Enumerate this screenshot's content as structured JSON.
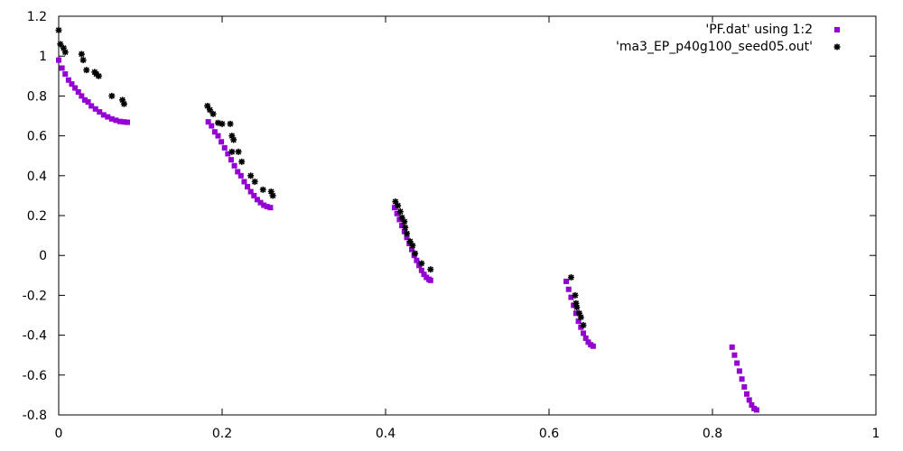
{
  "chart_data": {
    "type": "scatter",
    "xlim": [
      0,
      1
    ],
    "ylim": [
      -0.8,
      1.2
    ],
    "x_ticks": [
      0,
      0.2,
      0.4,
      0.6,
      0.8,
      1
    ],
    "x_tick_labels": [
      "0",
      "0.2",
      "0.4",
      "0.6",
      "0.8",
      "1"
    ],
    "y_ticks": [
      -0.8,
      -0.6,
      -0.4,
      -0.2,
      0,
      0.2,
      0.4,
      0.6,
      0.8,
      1,
      1.2
    ],
    "y_tick_labels": [
      "-0.8",
      "-0.6",
      "-0.4",
      "-0.2",
      "0",
      "0.2",
      "0.4",
      "0.6",
      "0.8",
      "1",
      "1.2"
    ],
    "grid": false,
    "legend_position": "top-right",
    "series": [
      {
        "name": "'PF.dat' using 1:2",
        "color": "#9400d3",
        "marker": "filled-square",
        "points": [
          [
            0.0,
            0.98
          ],
          [
            0.004,
            0.94
          ],
          [
            0.008,
            0.91
          ],
          [
            0.012,
            0.88
          ],
          [
            0.016,
            0.86
          ],
          [
            0.02,
            0.84
          ],
          [
            0.024,
            0.82
          ],
          [
            0.028,
            0.8
          ],
          [
            0.032,
            0.78
          ],
          [
            0.036,
            0.77
          ],
          [
            0.04,
            0.75
          ],
          [
            0.045,
            0.735
          ],
          [
            0.05,
            0.72
          ],
          [
            0.055,
            0.705
          ],
          [
            0.06,
            0.695
          ],
          [
            0.065,
            0.685
          ],
          [
            0.07,
            0.678
          ],
          [
            0.075,
            0.672
          ],
          [
            0.08,
            0.67
          ],
          [
            0.084,
            0.668
          ],
          [
            0.183,
            0.67
          ],
          [
            0.187,
            0.65
          ],
          [
            0.191,
            0.62
          ],
          [
            0.195,
            0.6
          ],
          [
            0.199,
            0.57
          ],
          [
            0.203,
            0.54
          ],
          [
            0.207,
            0.51
          ],
          [
            0.211,
            0.48
          ],
          [
            0.215,
            0.45
          ],
          [
            0.219,
            0.42
          ],
          [
            0.223,
            0.4
          ],
          [
            0.227,
            0.37
          ],
          [
            0.231,
            0.345
          ],
          [
            0.235,
            0.32
          ],
          [
            0.239,
            0.3
          ],
          [
            0.243,
            0.28
          ],
          [
            0.247,
            0.265
          ],
          [
            0.251,
            0.252
          ],
          [
            0.255,
            0.245
          ],
          [
            0.259,
            0.24
          ],
          [
            0.411,
            0.24
          ],
          [
            0.414,
            0.21
          ],
          [
            0.417,
            0.18
          ],
          [
            0.42,
            0.15
          ],
          [
            0.423,
            0.12
          ],
          [
            0.426,
            0.09
          ],
          [
            0.429,
            0.06
          ],
          [
            0.432,
            0.03
          ],
          [
            0.435,
            0.0
          ],
          [
            0.438,
            -0.025
          ],
          [
            0.441,
            -0.05
          ],
          [
            0.444,
            -0.075
          ],
          [
            0.447,
            -0.095
          ],
          [
            0.45,
            -0.11
          ],
          [
            0.453,
            -0.12
          ],
          [
            0.455,
            -0.125
          ],
          [
            0.621,
            -0.13
          ],
          [
            0.624,
            -0.17
          ],
          [
            0.627,
            -0.21
          ],
          [
            0.63,
            -0.25
          ],
          [
            0.633,
            -0.29
          ],
          [
            0.636,
            -0.33
          ],
          [
            0.639,
            -0.36
          ],
          [
            0.642,
            -0.39
          ],
          [
            0.645,
            -0.415
          ],
          [
            0.648,
            -0.435
          ],
          [
            0.651,
            -0.448
          ],
          [
            0.654,
            -0.455
          ],
          [
            0.824,
            -0.46
          ],
          [
            0.827,
            -0.5
          ],
          [
            0.83,
            -0.54
          ],
          [
            0.833,
            -0.58
          ],
          [
            0.836,
            -0.62
          ],
          [
            0.839,
            -0.66
          ],
          [
            0.842,
            -0.695
          ],
          [
            0.845,
            -0.725
          ],
          [
            0.848,
            -0.75
          ],
          [
            0.851,
            -0.768
          ],
          [
            0.854,
            -0.775
          ]
        ]
      },
      {
        "name": "'ma3_EP_p40g100_seed05.out'",
        "color": "#000000",
        "marker": "asterisk",
        "points": [
          [
            0.0,
            1.13
          ],
          [
            0.002,
            1.06
          ],
          [
            0.006,
            1.04
          ],
          [
            0.008,
            1.02
          ],
          [
            0.028,
            1.01
          ],
          [
            0.03,
            0.98
          ],
          [
            0.034,
            0.93
          ],
          [
            0.044,
            0.92
          ],
          [
            0.046,
            0.91
          ],
          [
            0.049,
            0.9
          ],
          [
            0.065,
            0.8
          ],
          [
            0.078,
            0.78
          ],
          [
            0.08,
            0.76
          ],
          [
            0.182,
            0.75
          ],
          [
            0.185,
            0.73
          ],
          [
            0.189,
            0.71
          ],
          [
            0.195,
            0.665
          ],
          [
            0.2,
            0.66
          ],
          [
            0.21,
            0.66
          ],
          [
            0.212,
            0.6
          ],
          [
            0.214,
            0.58
          ],
          [
            0.212,
            0.52
          ],
          [
            0.22,
            0.52
          ],
          [
            0.224,
            0.47
          ],
          [
            0.235,
            0.4
          ],
          [
            0.24,
            0.37
          ],
          [
            0.25,
            0.33
          ],
          [
            0.26,
            0.32
          ],
          [
            0.262,
            0.3
          ],
          [
            0.412,
            0.27
          ],
          [
            0.415,
            0.25
          ],
          [
            0.418,
            0.22
          ],
          [
            0.42,
            0.19
          ],
          [
            0.423,
            0.17
          ],
          [
            0.424,
            0.14
          ],
          [
            0.426,
            0.11
          ],
          [
            0.43,
            0.07
          ],
          [
            0.433,
            0.05
          ],
          [
            0.436,
            0.01
          ],
          [
            0.444,
            -0.04
          ],
          [
            0.455,
            -0.07
          ],
          [
            0.627,
            -0.11
          ],
          [
            0.632,
            -0.2
          ],
          [
            0.633,
            -0.24
          ],
          [
            0.634,
            -0.26
          ],
          [
            0.637,
            -0.29
          ],
          [
            0.639,
            -0.31
          ],
          [
            0.642,
            -0.35
          ]
        ]
      }
    ]
  }
}
